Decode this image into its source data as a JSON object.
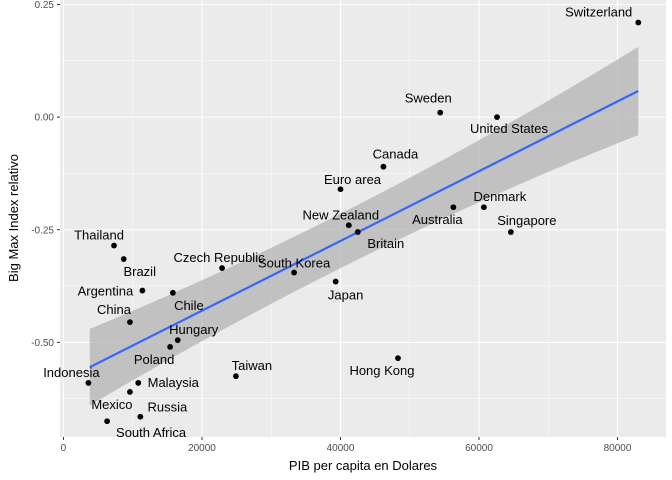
{
  "chart_data": {
    "type": "scatter",
    "title": "",
    "xlabel": "PIB per capita en Dolares",
    "ylabel": "Big Max Index relativo",
    "xlim": [
      -500,
      87000
    ],
    "ylim": [
      -0.71,
      0.26
    ],
    "x_ticks": [
      0,
      20000,
      40000,
      60000,
      80000
    ],
    "x_tick_labels": [
      "0",
      "20000",
      "40000",
      "60000",
      "80000"
    ],
    "y_ticks": [
      -0.5,
      -0.25,
      0.0,
      0.25
    ],
    "y_tick_labels": [
      "-0.50",
      "-0.25",
      "0.00",
      "0.25"
    ],
    "panel_background": "#ebebeb",
    "grid": true,
    "grid_color": "#ffffff",
    "point_color": "#000000",
    "fit_line": {
      "method": "linear",
      "x": [
        3800,
        83000
      ],
      "y": [
        -0.555,
        0.058
      ],
      "color": "#3366ff",
      "confidence_band_color": "#b3b3b3",
      "band_lower": [
        -0.64,
        -0.04
      ],
      "band_upper": [
        -0.47,
        0.156
      ]
    },
    "points": [
      {
        "label": "Switzerland",
        "x": 83000,
        "y": 0.21,
        "label_anchor": "end",
        "label_dx": -6,
        "label_dy": -6
      },
      {
        "label": "Sweden",
        "x": 54400,
        "y": 0.01,
        "label_anchor": "middle",
        "label_dx": -12,
        "label_dy": -10
      },
      {
        "label": "United States",
        "x": 62600,
        "y": 0.0,
        "label_anchor": "middle",
        "label_dx": 12,
        "label_dy": 16
      },
      {
        "label": "Canada",
        "x": 46200,
        "y": -0.11,
        "label_anchor": "middle",
        "label_dx": 12,
        "label_dy": -8
      },
      {
        "label": "Euro area",
        "x": 40000,
        "y": -0.16,
        "label_anchor": "middle",
        "label_dx": 12,
        "label_dy": -5
      },
      {
        "label": "Denmark",
        "x": 60700,
        "y": -0.2,
        "label_anchor": "middle",
        "label_dx": 16,
        "label_dy": -6
      },
      {
        "label": "Australia",
        "x": 56300,
        "y": -0.2,
        "label_anchor": "middle",
        "label_dx": -16,
        "label_dy": 17
      },
      {
        "label": "New Zealand",
        "x": 41200,
        "y": -0.24,
        "label_anchor": "middle",
        "label_dx": -8,
        "label_dy": -6
      },
      {
        "label": "Singapore",
        "x": 64600,
        "y": -0.255,
        "label_anchor": "middle",
        "label_dx": 16,
        "label_dy": -7
      },
      {
        "label": "Britain",
        "x": 42500,
        "y": -0.255,
        "label_anchor": "middle",
        "label_dx": 28,
        "label_dy": 16
      },
      {
        "label": "Thailand",
        "x": 7300,
        "y": -0.285,
        "label_anchor": "middle",
        "label_dx": -15,
        "label_dy": -6
      },
      {
        "label": "Brazil",
        "x": 8700,
        "y": -0.315,
        "label_anchor": "middle",
        "label_dx": 16,
        "label_dy": 17
      },
      {
        "label": "Czech Republic",
        "x": 22900,
        "y": -0.335,
        "label_anchor": "middle",
        "label_dx": -3,
        "label_dy": -6
      },
      {
        "label": "South Korea",
        "x": 33300,
        "y": -0.345,
        "label_anchor": "middle",
        "label_dx": 0,
        "label_dy": -5
      },
      {
        "label": "Japan",
        "x": 39300,
        "y": -0.365,
        "label_anchor": "middle",
        "label_dx": 10,
        "label_dy": 18
      },
      {
        "label": "Argentina",
        "x": 11400,
        "y": -0.385,
        "label_anchor": "middle",
        "label_dx": -37,
        "label_dy": 5
      },
      {
        "label": "Chile",
        "x": 15800,
        "y": -0.39,
        "label_anchor": "middle",
        "label_dx": 16,
        "label_dy": 17
      },
      {
        "label": "China",
        "x": 9600,
        "y": -0.455,
        "label_anchor": "middle",
        "label_dx": -16,
        "label_dy": -8
      },
      {
        "label": "Hungary",
        "x": 16500,
        "y": -0.495,
        "label_anchor": "middle",
        "label_dx": 16,
        "label_dy": -6
      },
      {
        "label": "Poland",
        "x": 15400,
        "y": -0.51,
        "label_anchor": "middle",
        "label_dx": -16,
        "label_dy": 17
      },
      {
        "label": "Hong Kong",
        "x": 48300,
        "y": -0.535,
        "label_anchor": "middle",
        "label_dx": -16,
        "label_dy": 17
      },
      {
        "label": "Taiwan",
        "x": 24900,
        "y": -0.575,
        "label_anchor": "middle",
        "label_dx": 16,
        "label_dy": -6
      },
      {
        "label": "Indonesia",
        "x": 3600,
        "y": -0.59,
        "label_anchor": "middle",
        "label_dx": -17,
        "label_dy": -6
      },
      {
        "label": "Malaysia",
        "x": 10800,
        "y": -0.59,
        "label_anchor": "middle",
        "label_dx": 35,
        "label_dy": 4
      },
      {
        "label": "Mexico",
        "x": 9600,
        "y": -0.61,
        "label_anchor": "middle",
        "label_dx": -18,
        "label_dy": 17
      },
      {
        "label": "Russia",
        "x": 11100,
        "y": -0.665,
        "label_anchor": "middle",
        "label_dx": 27,
        "label_dy": -5
      },
      {
        "label": "South Africa",
        "x": 6300,
        "y": -0.675,
        "label_anchor": "middle",
        "label_dx": 44,
        "label_dy": 16
      }
    ]
  }
}
